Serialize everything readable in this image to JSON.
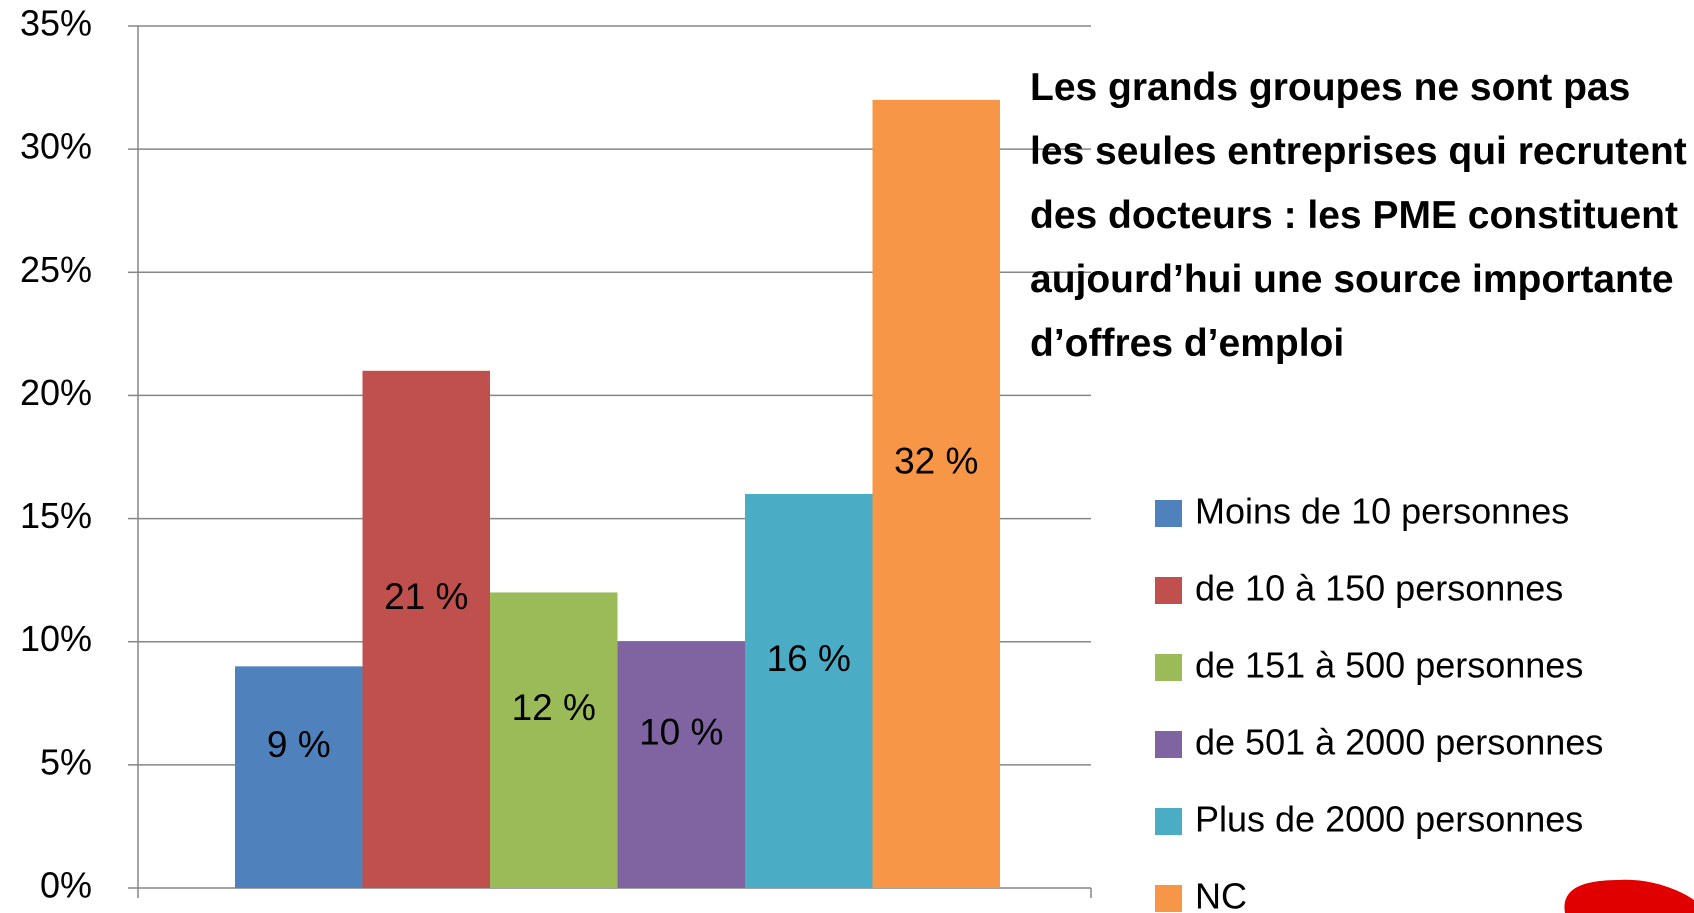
{
  "chart_data": {
    "type": "bar",
    "annotation": "Les grands groupes ne sont pas les seules entreprises qui recrutent des docteurs : les PME constituent aujourd’hui une source importante d’offres d’emploi",
    "series": [
      {
        "name": "Moins de 10 personnes",
        "color": "#4f81bd",
        "values": [
          9
        ],
        "value_labels": [
          "9 %"
        ]
      },
      {
        "name": "de 10 à 150 personnes",
        "color": "#c0504d",
        "values": [
          21
        ],
        "value_labels": [
          "21 %"
        ]
      },
      {
        "name": "de 151 à 500 personnes",
        "color": "#9bbb59",
        "values": [
          12
        ],
        "value_labels": [
          "12 %"
        ]
      },
      {
        "name": "de 501 à 2000 personnes",
        "color": "#8064a2",
        "values": [
          10
        ],
        "value_labels": [
          "10 %"
        ]
      },
      {
        "name": "Plus de 2000 personnes",
        "color": "#4bacc6",
        "values": [
          16
        ],
        "value_labels": [
          "16 %"
        ]
      },
      {
        "name": "NC",
        "color": "#f79646",
        "values": [
          32
        ],
        "value_labels": [
          "32 %"
        ]
      }
    ],
    "ylim": [
      0,
      35
    ],
    "yticks": [
      {
        "value": 0,
        "label": "0%"
      },
      {
        "value": 5,
        "label": "5%"
      },
      {
        "value": 10,
        "label": "10%"
      },
      {
        "value": 15,
        "label": "15%"
      },
      {
        "value": 20,
        "label": "20%"
      },
      {
        "value": 25,
        "label": "25%"
      },
      {
        "value": 30,
        "label": "30%"
      },
      {
        "value": 35,
        "label": "35%"
      }
    ],
    "grid": true,
    "legend": "right"
  }
}
